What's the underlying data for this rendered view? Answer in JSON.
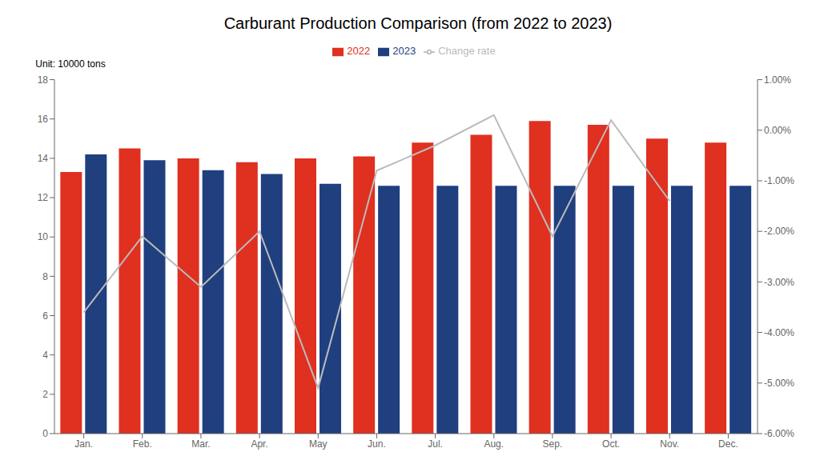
{
  "chart_data": {
    "type": "bar",
    "title": "Carburant Production Comparison (from 2022 to 2023)",
    "ylabel": "Unit: 10000 tons",
    "categories": [
      "Jan.",
      "Feb.",
      "Mar.",
      "Apr.",
      "May",
      "Jun.",
      "Jul.",
      "Aug.",
      "Sep.",
      "Oct.",
      "Nov.",
      "Dec."
    ],
    "series": [
      {
        "name": "2022",
        "type": "bar",
        "color": "#e03020",
        "values": [
          13.3,
          14.5,
          14.0,
          13.8,
          14.0,
          14.1,
          14.8,
          15.2,
          15.9,
          15.7,
          15.0,
          14.8
        ]
      },
      {
        "name": "2023",
        "type": "bar",
        "color": "#1f3f7f",
        "values": [
          14.2,
          13.9,
          13.4,
          13.2,
          12.7,
          12.6,
          12.6,
          12.6,
          12.6,
          12.6,
          12.6,
          12.6
        ]
      },
      {
        "name": "Change rate",
        "type": "line",
        "axis": "y2",
        "color": "#bbbbbb",
        "values": [
          -0.036,
          -0.021,
          -0.031,
          -0.02,
          -0.051,
          -0.008,
          -0.003,
          0.003,
          -0.021,
          0.002,
          -0.014,
          null
        ]
      }
    ],
    "ylim": [
      0,
      18
    ],
    "yticks": [
      0,
      2,
      4,
      6,
      8,
      10,
      12,
      14,
      16,
      18
    ],
    "y2lim": [
      -0.06,
      0.01
    ],
    "y2ticks": [
      {
        "value": -0.06,
        "label": "-6.00%"
      },
      {
        "value": -0.05,
        "label": "-5.00%"
      },
      {
        "value": -0.04,
        "label": "-4.00%"
      },
      {
        "value": -0.03,
        "label": "-3.00%"
      },
      {
        "value": -0.02,
        "label": "-2.00%"
      },
      {
        "value": -0.01,
        "label": "-1.00%"
      },
      {
        "value": 0.0,
        "label": "0.00%"
      },
      {
        "value": 0.01,
        "label": "1.00%"
      }
    ],
    "grid": false,
    "legend": "top"
  }
}
